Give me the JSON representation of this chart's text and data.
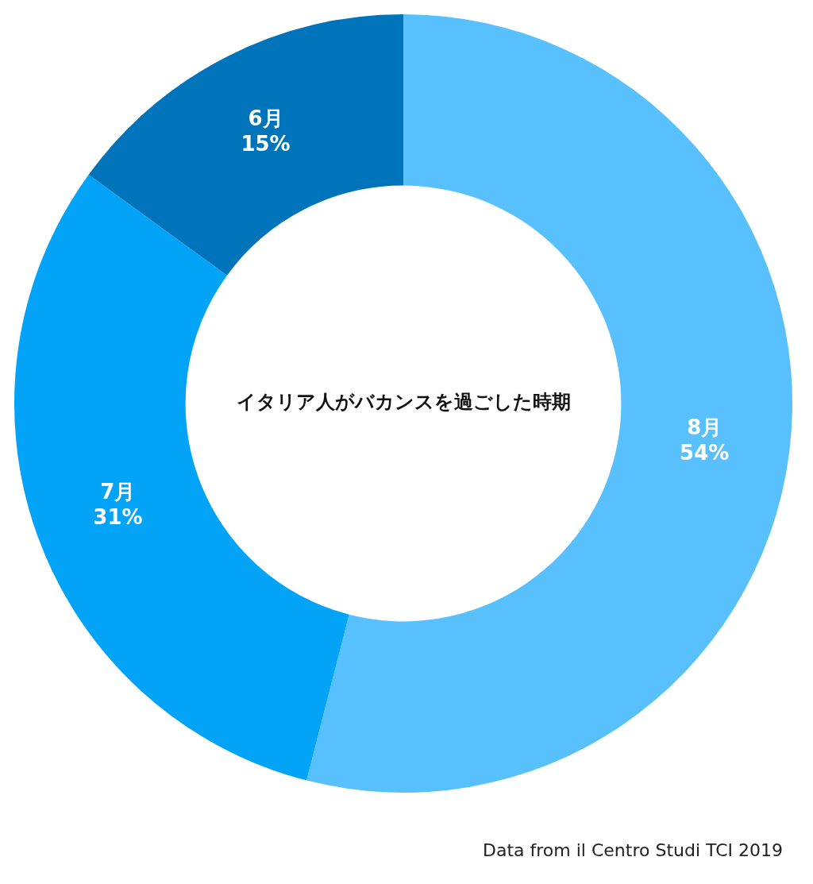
{
  "chart_data": {
    "type": "donut",
    "title": "イタリア人がバカンスを過ごした時期",
    "categories": [
      "8月",
      "7月",
      "6月"
    ],
    "values": [
      54,
      31,
      15
    ],
    "value_labels": [
      "54%",
      "31%",
      "15%"
    ],
    "colors": [
      "#58c0fc",
      "#03a3f8",
      "#0074ba"
    ],
    "legend": false,
    "annotations": [
      "Data from il Centro Studi TCI 2019"
    ]
  }
}
